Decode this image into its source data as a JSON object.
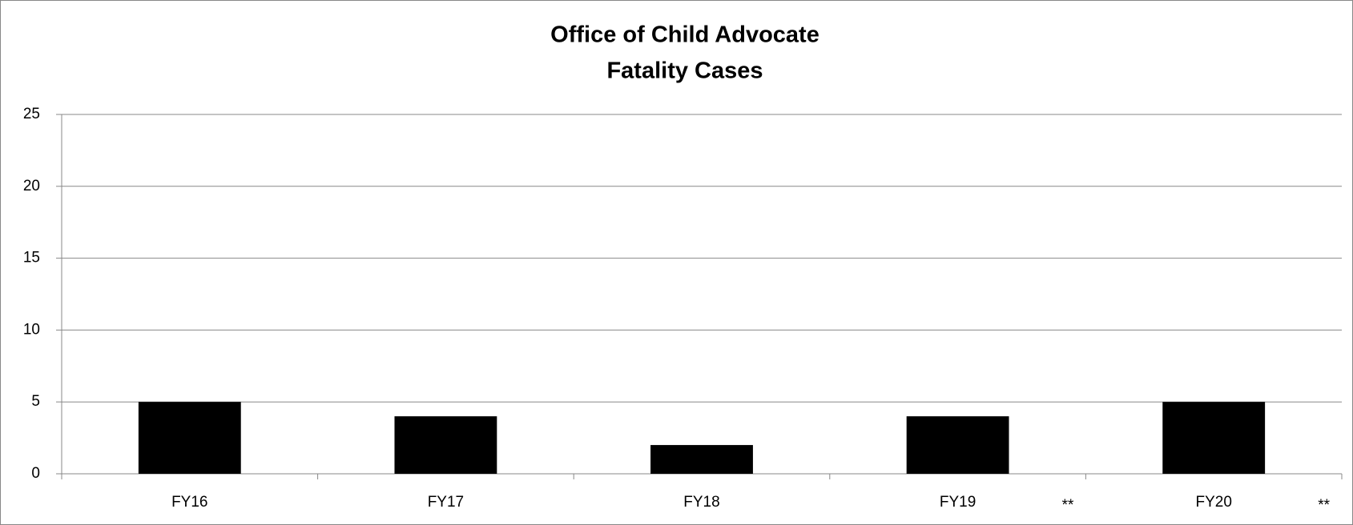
{
  "chart_data": {
    "type": "bar",
    "title": "Office of Child Advocate",
    "subtitle": "Fatality Cases",
    "categories": [
      "FY16",
      "FY17",
      "FY18",
      "FY19",
      "FY20"
    ],
    "values": [
      5,
      4,
      2,
      4,
      5
    ],
    "color": "#000000",
    "ylim": [
      0,
      25
    ],
    "yticks": [
      0,
      5,
      10,
      15,
      20,
      25
    ],
    "grid": true,
    "annotations": [
      "**",
      "**"
    ]
  }
}
